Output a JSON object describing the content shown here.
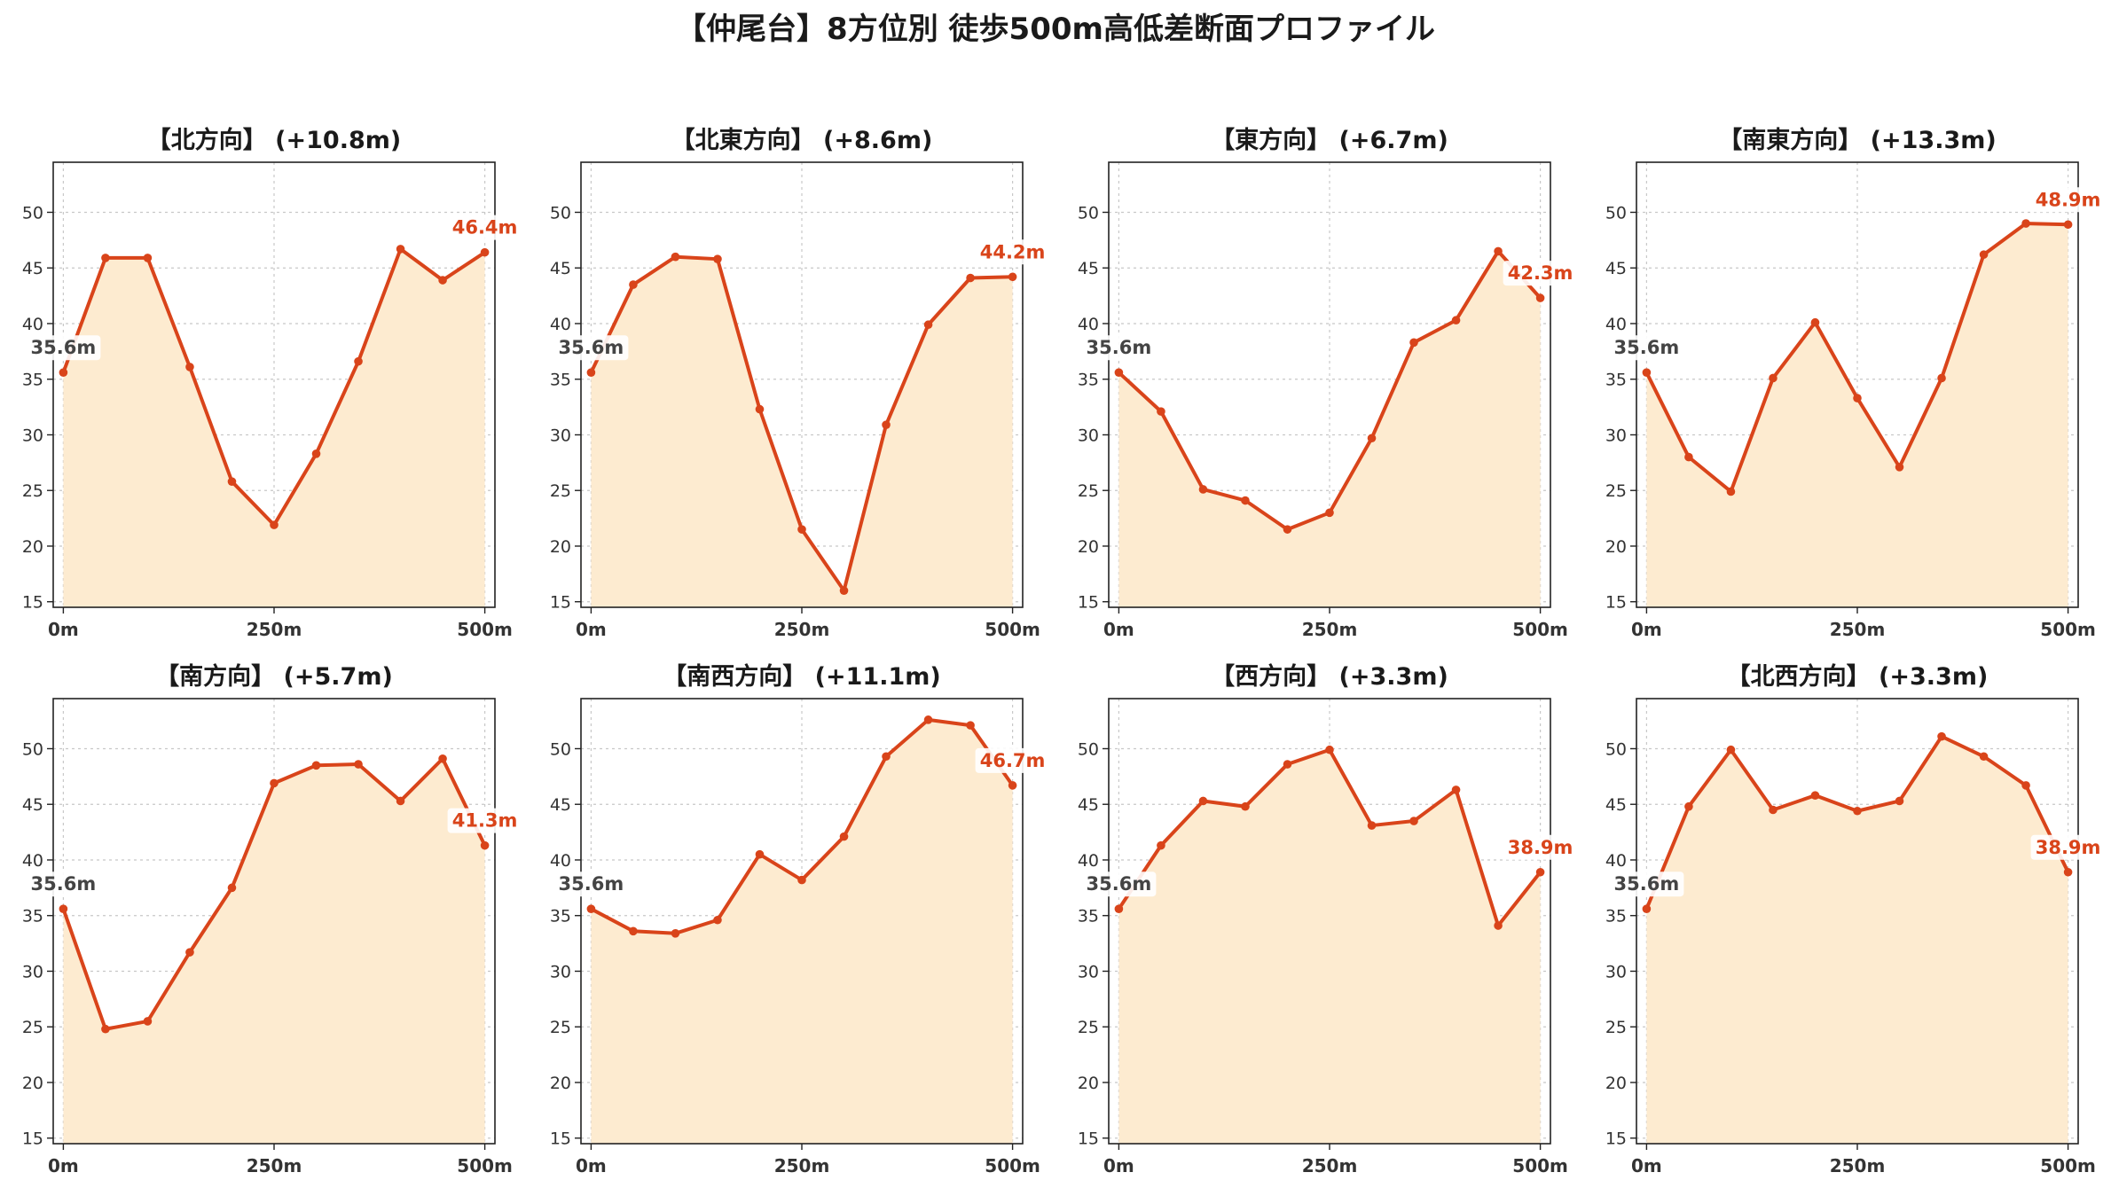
{
  "title": "【仲尾台】8方位別 徒歩500m高低差断面プロファイル",
  "colors": {
    "line": "#d9441a",
    "fill": "#fdebd0",
    "grid": "#c8c8c8",
    "start_label": "#444444",
    "end_label": "#d9441a"
  },
  "chart_data": [
    {
      "type": "area",
      "title": "【北方向】 (+10.8m)",
      "x": [
        0,
        50,
        100,
        150,
        200,
        250,
        300,
        350,
        400,
        450,
        500
      ],
      "values": [
        35.6,
        45.9,
        45.9,
        36.1,
        25.8,
        21.9,
        28.3,
        36.6,
        46.7,
        43.9,
        46.4
      ],
      "start_label": "35.6m",
      "end_label": "46.4m",
      "xticks": [
        "0m",
        "250m",
        "500m"
      ],
      "xtick_values": [
        0,
        250,
        500
      ],
      "yticks": [
        15,
        20,
        25,
        30,
        35,
        40,
        45,
        50
      ],
      "ylim": [
        14.5,
        54.5
      ],
      "xlim": [
        -12,
        512
      ],
      "grid": true
    },
    {
      "type": "area",
      "title": "【北東方向】 (+8.6m)",
      "x": [
        0,
        50,
        100,
        150,
        200,
        250,
        300,
        350,
        400,
        450,
        500
      ],
      "values": [
        35.6,
        43.5,
        46.0,
        45.8,
        32.3,
        21.5,
        16.0,
        30.9,
        39.9,
        44.1,
        44.2
      ],
      "start_label": "35.6m",
      "end_label": "44.2m",
      "xticks": [
        "0m",
        "250m",
        "500m"
      ],
      "xtick_values": [
        0,
        250,
        500
      ],
      "yticks": [
        15,
        20,
        25,
        30,
        35,
        40,
        45,
        50
      ],
      "ylim": [
        14.5,
        54.5
      ],
      "xlim": [
        -12,
        512
      ],
      "grid": true
    },
    {
      "type": "area",
      "title": "【東方向】 (+6.7m)",
      "x": [
        0,
        50,
        100,
        150,
        200,
        250,
        300,
        350,
        400,
        450,
        500
      ],
      "values": [
        35.6,
        32.1,
        25.1,
        24.1,
        21.5,
        23.0,
        29.7,
        38.3,
        40.3,
        46.5,
        42.3
      ],
      "start_label": "35.6m",
      "end_label": "42.3m",
      "xticks": [
        "0m",
        "250m",
        "500m"
      ],
      "xtick_values": [
        0,
        250,
        500
      ],
      "yticks": [
        15,
        20,
        25,
        30,
        35,
        40,
        45,
        50
      ],
      "ylim": [
        14.5,
        54.5
      ],
      "xlim": [
        -12,
        512
      ],
      "grid": true
    },
    {
      "type": "area",
      "title": "【南東方向】 (+13.3m)",
      "x": [
        0,
        50,
        100,
        150,
        200,
        250,
        300,
        350,
        400,
        450,
        500
      ],
      "values": [
        35.6,
        28.0,
        24.9,
        35.1,
        40.1,
        33.3,
        27.1,
        35.1,
        46.2,
        49.0,
        48.9
      ],
      "start_label": "35.6m",
      "end_label": "48.9m",
      "xticks": [
        "0m",
        "250m",
        "500m"
      ],
      "xtick_values": [
        0,
        250,
        500
      ],
      "yticks": [
        15,
        20,
        25,
        30,
        35,
        40,
        45,
        50
      ],
      "ylim": [
        14.5,
        54.5
      ],
      "xlim": [
        -12,
        512
      ],
      "grid": true
    },
    {
      "type": "area",
      "title": "【南方向】 (+5.7m)",
      "x": [
        0,
        50,
        100,
        150,
        200,
        250,
        300,
        350,
        400,
        450,
        500
      ],
      "values": [
        35.6,
        24.8,
        25.5,
        31.7,
        37.5,
        46.9,
        48.5,
        48.6,
        45.3,
        49.1,
        41.3
      ],
      "start_label": "35.6m",
      "end_label": "41.3m",
      "xticks": [
        "0m",
        "250m",
        "500m"
      ],
      "xtick_values": [
        0,
        250,
        500
      ],
      "yticks": [
        15,
        20,
        25,
        30,
        35,
        40,
        45,
        50
      ],
      "ylim": [
        14.5,
        54.5
      ],
      "xlim": [
        -12,
        512
      ],
      "grid": true
    },
    {
      "type": "area",
      "title": "【南西方向】 (+11.1m)",
      "x": [
        0,
        50,
        100,
        150,
        200,
        250,
        300,
        350,
        400,
        450,
        500
      ],
      "values": [
        35.6,
        33.6,
        33.4,
        34.6,
        40.5,
        38.2,
        42.1,
        49.3,
        52.6,
        52.1,
        46.7
      ],
      "start_label": "35.6m",
      "end_label": "46.7m",
      "xticks": [
        "0m",
        "250m",
        "500m"
      ],
      "xtick_values": [
        0,
        250,
        500
      ],
      "yticks": [
        15,
        20,
        25,
        30,
        35,
        40,
        45,
        50
      ],
      "ylim": [
        14.5,
        54.5
      ],
      "xlim": [
        -12,
        512
      ],
      "grid": true
    },
    {
      "type": "area",
      "title": "【西方向】 (+3.3m)",
      "x": [
        0,
        50,
        100,
        150,
        200,
        250,
        300,
        350,
        400,
        450,
        500
      ],
      "values": [
        35.6,
        41.3,
        45.3,
        44.8,
        48.6,
        49.9,
        43.1,
        43.5,
        46.3,
        34.1,
        38.9
      ],
      "start_label": "35.6m",
      "end_label": "38.9m",
      "xticks": [
        "0m",
        "250m",
        "500m"
      ],
      "xtick_values": [
        0,
        250,
        500
      ],
      "yticks": [
        15,
        20,
        25,
        30,
        35,
        40,
        45,
        50
      ],
      "ylim": [
        14.5,
        54.5
      ],
      "xlim": [
        -12,
        512
      ],
      "grid": true
    },
    {
      "type": "area",
      "title": "【北西方向】 (+3.3m)",
      "x": [
        0,
        50,
        100,
        150,
        200,
        250,
        300,
        350,
        400,
        450,
        500
      ],
      "values": [
        35.6,
        44.8,
        49.9,
        44.5,
        45.8,
        44.4,
        45.3,
        51.1,
        49.3,
        46.7,
        38.9
      ],
      "start_label": "35.6m",
      "end_label": "38.9m",
      "xticks": [
        "0m",
        "250m",
        "500m"
      ],
      "xtick_values": [
        0,
        250,
        500
      ],
      "yticks": [
        15,
        20,
        25,
        30,
        35,
        40,
        45,
        50
      ],
      "ylim": [
        14.5,
        54.5
      ],
      "xlim": [
        -12,
        512
      ],
      "grid": true
    }
  ]
}
